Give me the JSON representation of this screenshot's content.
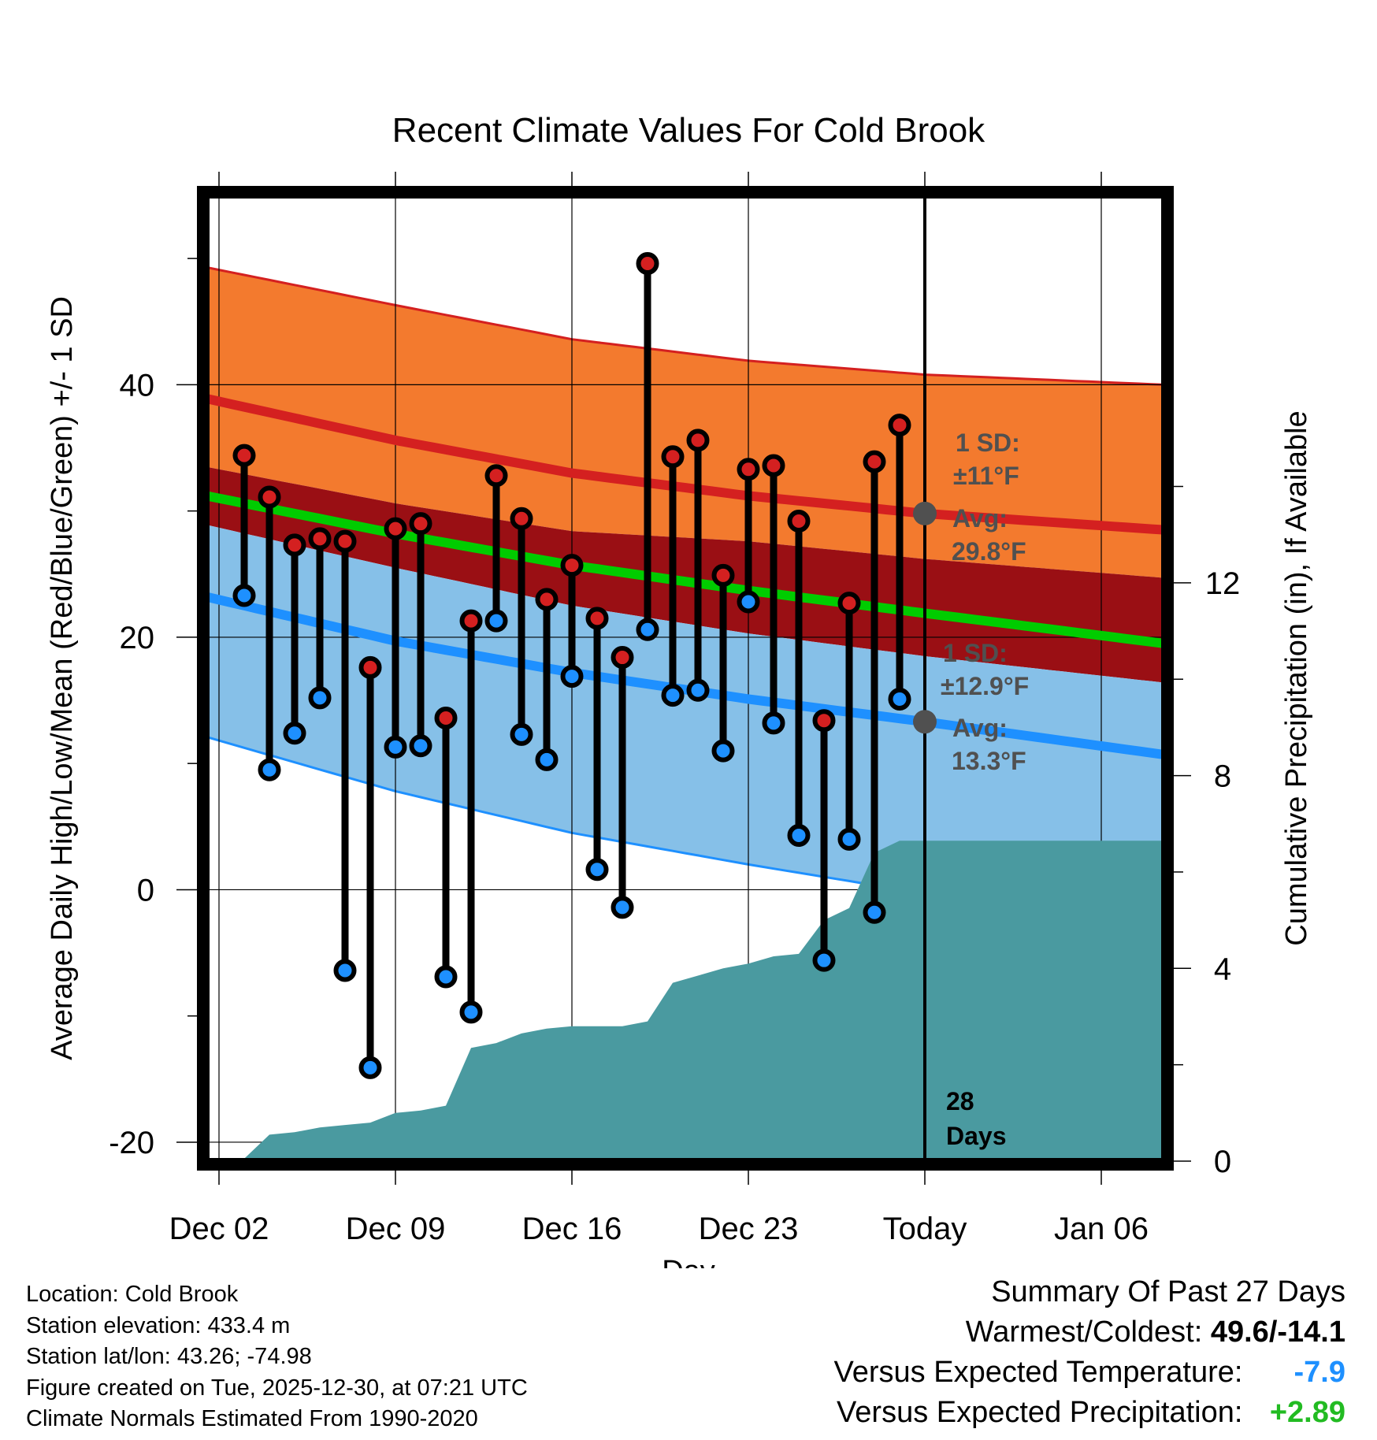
{
  "chart_data": {
    "type": "line",
    "title": "Recent Climate Values For Cold Brook",
    "xlabel": "Day",
    "ylabel_left": "Average Daily High/Low/Mean (Red/Blue/Green) +/- 1 SD",
    "ylabel_right": "Cumulative Precipitation (in), If Available",
    "ylim_left": [
      -21.5,
      55
    ],
    "ylim_right": [
      0,
      20.04
    ],
    "yticks_left": [
      -20,
      0,
      20,
      40
    ],
    "yticks_right": [
      0,
      4,
      8,
      12
    ],
    "xlim_days": [
      -28.5,
      9.5
    ],
    "x_ticks": [
      {
        "day": -28,
        "label": "Dec 02"
      },
      {
        "day": -21,
        "label": "Dec 09"
      },
      {
        "day": -14,
        "label": "Dec 16"
      },
      {
        "day": -7,
        "label": "Dec 23"
      },
      {
        "day": 0,
        "label": "Today"
      },
      {
        "day": 7,
        "label": "Jan 06"
      }
    ],
    "normals": {
      "days": [
        -28.5,
        -21,
        -14,
        -7,
        0,
        9.5
      ],
      "high_avg": [
        38.9,
        35.6,
        33.0,
        31.2,
        29.8,
        28.5
      ],
      "high_upper": [
        49.3,
        46.3,
        43.6,
        41.9,
        40.8,
        40.0
      ],
      "high_lower": [
        33.5,
        30.6,
        28.4,
        27.6,
        26.2,
        24.7
      ],
      "mean_avg": [
        31.2,
        28.2,
        25.7,
        23.7,
        21.9,
        19.5
      ],
      "low_avg": [
        23.2,
        19.7,
        17.2,
        15.1,
        13.3,
        10.7
      ],
      "low_upper": [
        28.9,
        25.5,
        22.5,
        20.3,
        18.5,
        16.4
      ],
      "low_lower": [
        12.1,
        7.8,
        4.5,
        2.0,
        -0.3,
        -2.2
      ]
    },
    "series": [
      {
        "name": "Daily High",
        "color": "#d42020",
        "days": [
          -27,
          -26,
          -25,
          -24,
          -23,
          -22,
          -21,
          -20,
          -19,
          -18,
          -17,
          -16,
          -15,
          -14,
          -13,
          -12,
          -11,
          -10,
          -9,
          -8,
          -7,
          -6,
          -5,
          -4,
          -3,
          -2,
          -1
        ],
        "values": [
          34.4,
          31.1,
          27.3,
          27.8,
          27.6,
          17.6,
          28.6,
          29.0,
          13.6,
          21.3,
          32.8,
          29.4,
          23.0,
          25.7,
          21.5,
          18.4,
          49.6,
          34.3,
          35.6,
          24.9,
          33.3,
          33.6,
          29.2,
          13.4,
          22.7,
          33.9,
          36.8
        ]
      },
      {
        "name": "Daily Low",
        "color": "#1e90ff",
        "days": [
          -27,
          -26,
          -25,
          -24,
          -23,
          -22,
          -21,
          -20,
          -19,
          -18,
          -17,
          -16,
          -15,
          -14,
          -13,
          -12,
          -11,
          -10,
          -9,
          -8,
          -7,
          -6,
          -5,
          -4,
          -3,
          -2,
          -1
        ],
        "values": [
          23.3,
          9.5,
          12.4,
          15.2,
          -6.4,
          -14.1,
          11.3,
          11.4,
          -6.9,
          -9.7,
          21.3,
          12.3,
          10.3,
          16.9,
          1.6,
          -1.4,
          20.6,
          15.4,
          15.8,
          11.0,
          22.8,
          13.2,
          4.3,
          -5.6,
          4.0,
          -1.8,
          15.1
        ]
      },
      {
        "name": "Cumulative Precipitation (in)",
        "color": "#4a9aa0",
        "days": [
          -28.5,
          -28,
          -27,
          -26,
          -25,
          -24,
          -23,
          -22,
          -21,
          -20,
          -19,
          -18,
          -17,
          -16,
          -15,
          -14,
          -13,
          -12,
          -11,
          -10,
          -9,
          -8,
          -7,
          -6,
          -5,
          -4,
          -3,
          -2,
          -1,
          0,
          9.5
        ],
        "values": [
          0.0,
          0.05,
          0.05,
          0.55,
          0.6,
          0.7,
          0.75,
          0.8,
          1.0,
          1.05,
          1.15,
          2.35,
          2.45,
          2.65,
          2.75,
          2.8,
          2.8,
          2.8,
          2.9,
          3.7,
          3.85,
          4.0,
          4.1,
          4.25,
          4.3,
          5.0,
          5.25,
          6.4,
          6.65,
          6.65,
          6.65
        ]
      }
    ],
    "annotations": {
      "high_sd": "1 SD:",
      "high_sd_value": "±11°F",
      "high_avg": "Avg:",
      "high_avg_value": "29.8°F",
      "low_sd": "1 SD:",
      "low_sd_value": "±12.9°F",
      "low_avg": "Avg:",
      "low_avg_value": "13.3°F",
      "days_count": "28",
      "days_word": "Days"
    }
  },
  "colors": {
    "high_band": "#f37a2e",
    "high_line": "#d42020",
    "overlap_band": "#9a0f14",
    "low_band": "#86c0e8",
    "low_line": "#1e90ff",
    "mean_line": "#00cc00",
    "precip": "#4a9aa0",
    "annotation": "#505050"
  },
  "footer": {
    "location": "Location: Cold Brook",
    "elevation": "Station elevation: 433.4 m",
    "latlon": "Station lat/lon: 43.26; -74.98",
    "created": "Figure created on Tue, 2025-12-30, at 07:21 UTC",
    "normals": "Climate Normals Estimated From 1990-2020"
  },
  "summary": {
    "heading": "Summary Of Past 27 Days",
    "warm_cold_label": "Warmest/Coldest:",
    "warm_cold_value": "49.6/-14.1",
    "temp_label": "Versus Expected Temperature:",
    "temp_value": "-7.9",
    "temp_color": "#1e90ff",
    "precip_label": "Versus Expected Precipitation:",
    "precip_value": "+2.89",
    "precip_color": "#22bb22"
  }
}
